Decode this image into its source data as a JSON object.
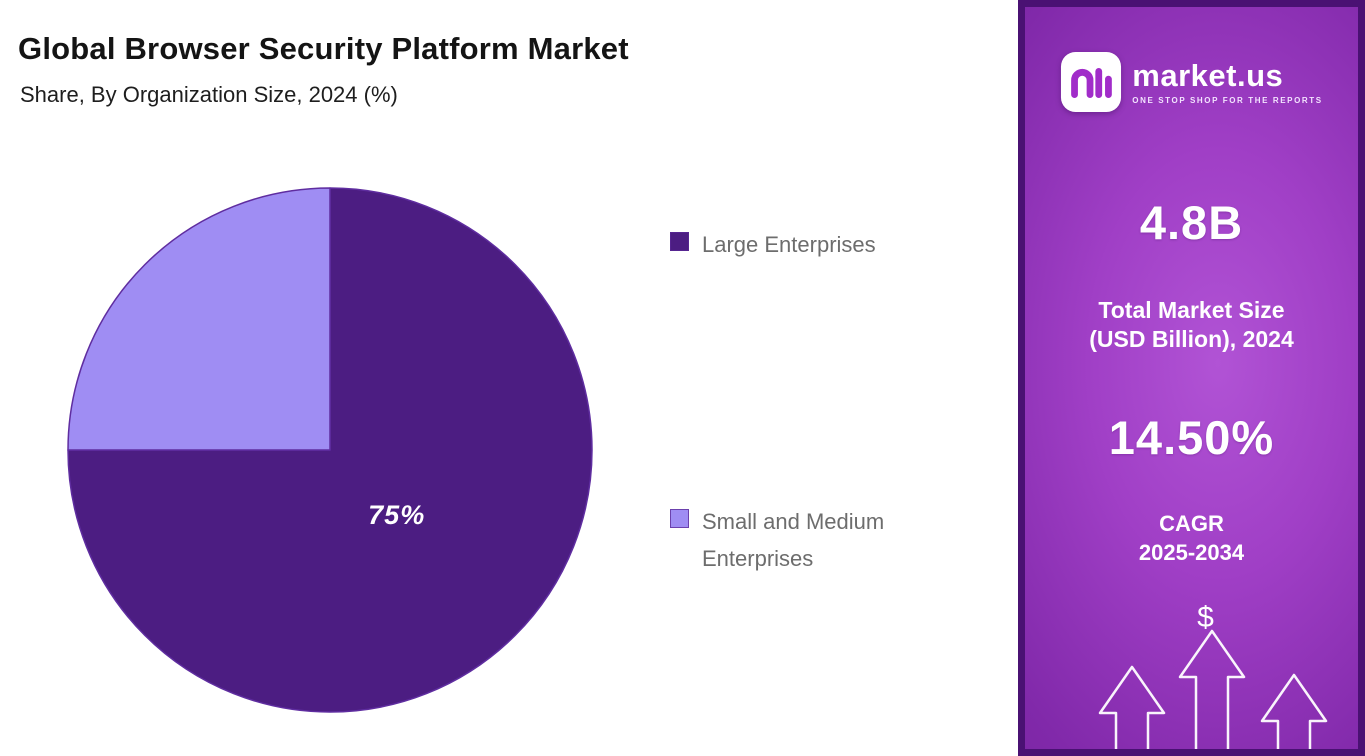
{
  "header": {
    "title": "Global Browser Security Platform Market",
    "subtitle": "Share, By Organization Size, 2024 (%)"
  },
  "chart_data": {
    "type": "pie",
    "title": "Global Browser Security Platform Market Share, By Organization Size, 2024 (%)",
    "unit": "%",
    "start_angle_deg": 0,
    "direction": "clockwise",
    "legend_position": "right",
    "slices": [
      {
        "label": "Large Enterprises",
        "value": 75,
        "color": "#4c1d82",
        "data_label": "75%"
      },
      {
        "label": "Small and Medium Enterprises",
        "value": 25,
        "color": "#9f8df3",
        "data_label": ""
      }
    ]
  },
  "sidebar": {
    "logo": {
      "brand": "market.us",
      "tagline": "ONE STOP SHOP FOR THE REPORTS"
    },
    "stats": [
      {
        "value": "4.8B",
        "label_line1": "Total Market Size",
        "label_line2": "(USD Billion), 2024"
      },
      {
        "value": "14.50%",
        "label_line1": "CAGR",
        "label_line2": "2025-2034"
      }
    ],
    "dollar_symbol": "$"
  },
  "colors": {
    "pie_large": "#4c1d82",
    "pie_small": "#9f8df3",
    "pie_stroke": "#5f2da0",
    "panel_border": "#4a1173",
    "legend_text": "#6d6d6d"
  }
}
